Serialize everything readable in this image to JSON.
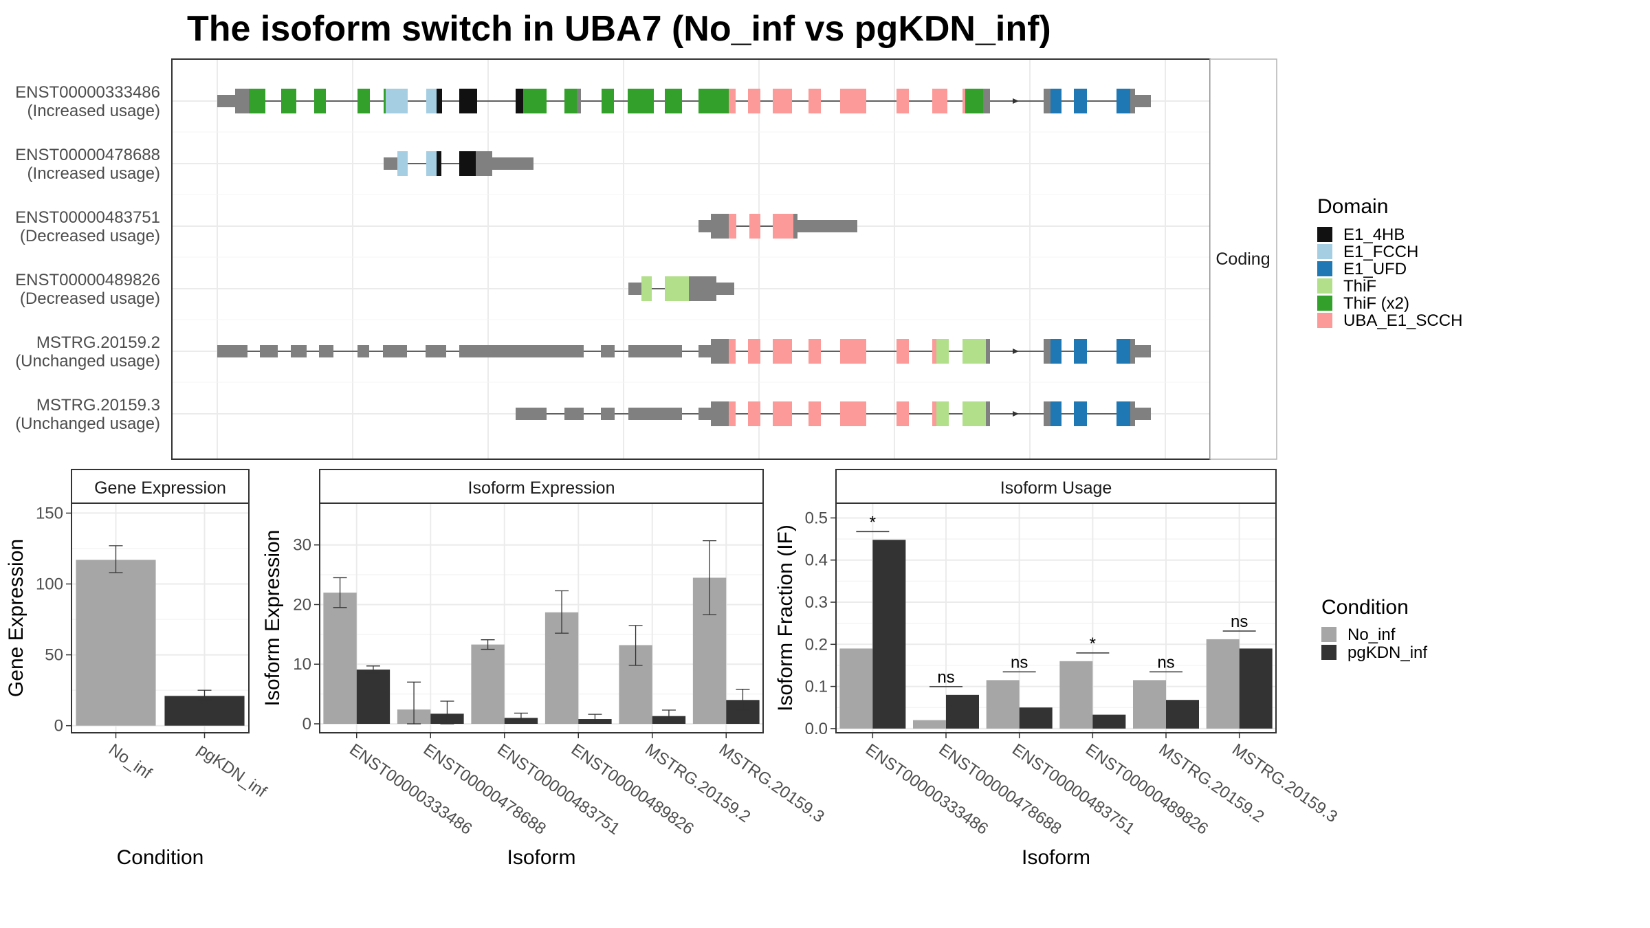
{
  "title": "The isoform switch in UBA7 (No_inf vs pgKDN_inf)",
  "colors": {
    "no_inf": "#a6a6a6",
    "pgKDN_inf": "#333333",
    "noncoding": "#808080",
    "E1_4HB": "#111111",
    "E1_FCCH": "#a6cee3",
    "E1_UFD": "#1f78b4",
    "ThiF": "#b2df8a",
    "ThiF_x2": "#33a02c",
    "UBA_E1_SCCH": "#fb9a99"
  },
  "structure": {
    "strip_label": "Coding",
    "rows": [
      {
        "id": "ENST00000333486",
        "label1": "ENST00000333486",
        "label2": "(Increased usage)"
      },
      {
        "id": "ENST00000478688",
        "label1": "ENST00000478688",
        "label2": "(Increased usage)"
      },
      {
        "id": "ENST00000483751",
        "label1": "ENST00000483751",
        "label2": "(Decreased usage)"
      },
      {
        "id": "ENST00000489826",
        "label1": "ENST00000489826",
        "label2": "(Decreased usage)"
      },
      {
        "id": "MSTRG.20159.2",
        "label1": "MSTRG.20159.2",
        "label2": "(Unchanged usage)"
      },
      {
        "id": "MSTRG.20159.3",
        "label1": "MSTRG.20159.3",
        "label2": "(Unchanged usage)"
      }
    ]
  },
  "domain_legend": {
    "title": "Domain",
    "items": [
      {
        "label": "E1_4HB",
        "color": "#111111"
      },
      {
        "label": "E1_FCCH",
        "color": "#a6cee3"
      },
      {
        "label": "E1_UFD",
        "color": "#1f78b4"
      },
      {
        "label": "ThiF",
        "color": "#b2df8a"
      },
      {
        "label": "ThiF (x2)",
        "color": "#33a02c"
      },
      {
        "label": "UBA_E1_SCCH",
        "color": "#fb9a99"
      }
    ]
  },
  "condition_legend": {
    "title": "Condition",
    "items": [
      {
        "label": "No_inf",
        "color": "#a6a6a6"
      },
      {
        "label": "pgKDN_inf",
        "color": "#333333"
      }
    ]
  },
  "chart_data": [
    {
      "type": "bar",
      "title": "Gene Expression",
      "xlabel": "Condition",
      "ylabel": "Gene Expression",
      "categories": [
        "No_inf",
        "pgKDN_inf"
      ],
      "values": [
        117,
        21
      ],
      "error_low": [
        108,
        18
      ],
      "error_high": [
        127,
        25
      ],
      "ylim": [
        -5,
        157
      ],
      "yticks": [
        0,
        50,
        100,
        150
      ]
    },
    {
      "type": "bar",
      "title": "Isoform Expression",
      "xlabel": "Isoform",
      "ylabel": "Isoform Expression",
      "categories": [
        "ENST00000333486",
        "ENST00000478688",
        "ENST00000483751",
        "ENST00000489826",
        "MSTRG.20159.2",
        "MSTRG.20159.3"
      ],
      "series": [
        {
          "name": "No_inf",
          "values": [
            22,
            2.4,
            13.3,
            18.7,
            13.2,
            24.5
          ],
          "error_low": [
            19.5,
            0,
            12.5,
            15.2,
            9.8,
            18.3
          ],
          "error_high": [
            24.5,
            7,
            14.1,
            22.3,
            16.5,
            30.7
          ]
        },
        {
          "name": "pgKDN_inf",
          "values": [
            9.1,
            1.7,
            1,
            0.8,
            1.3,
            4
          ],
          "error_low": [
            8.5,
            0,
            0.4,
            0.2,
            0.3,
            2.3
          ],
          "error_high": [
            9.7,
            3.8,
            1.8,
            1.6,
            2.3,
            5.8
          ]
        }
      ],
      "ylim": [
        -1.5,
        37
      ],
      "yticks": [
        0,
        10,
        20,
        30
      ]
    },
    {
      "type": "bar",
      "title": "Isoform Usage",
      "xlabel": "Isoform",
      "ylabel": "Isoform Fraction (IF)",
      "categories": [
        "ENST00000333486",
        "ENST00000478688",
        "ENST00000483751",
        "ENST00000489826",
        "MSTRG.20159.2",
        "MSTRG.20159.3"
      ],
      "series": [
        {
          "name": "No_inf",
          "values": [
            0.19,
            0.02,
            0.115,
            0.16,
            0.115,
            0.212
          ]
        },
        {
          "name": "pgKDN_inf",
          "values": [
            0.448,
            0.08,
            0.05,
            0.033,
            0.068,
            0.19
          ]
        }
      ],
      "significance": [
        "*",
        "ns",
        "ns",
        "*",
        "ns",
        "ns"
      ],
      "ylim": [
        -0.01,
        0.535
      ],
      "yticks": [
        0.0,
        0.1,
        0.2,
        0.3,
        0.4,
        0.5
      ]
    }
  ]
}
